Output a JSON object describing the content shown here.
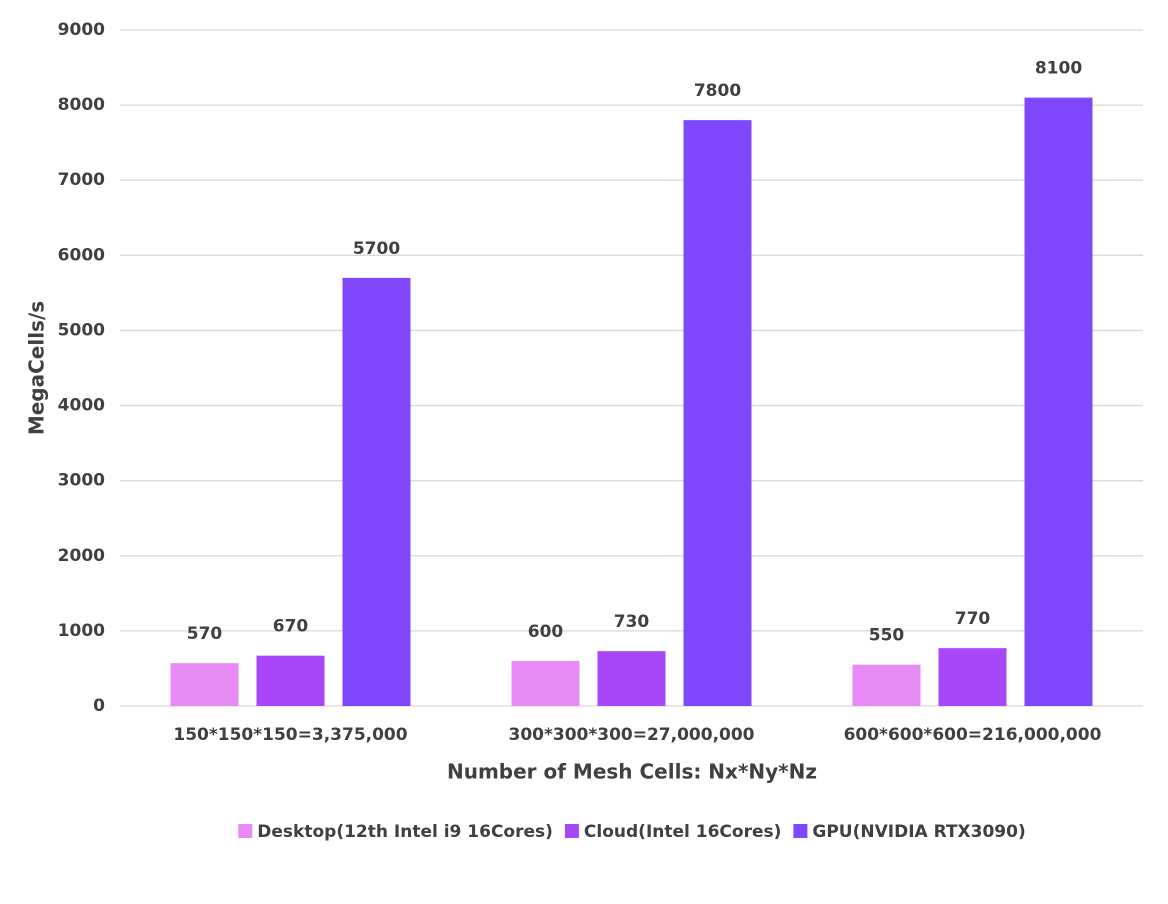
{
  "chart_data": {
    "type": "bar",
    "x_label": "Number of Mesh Cells: Nx*Ny*Nz",
    "y_label": "MegaCells/s",
    "categories": [
      "150*150*150=3,375,000",
      "300*300*300=27,000,000",
      "600*600*600=216,000,000"
    ],
    "series": [
      {
        "name": "Desktop(12th Intel i9 16Cores)",
        "color": "#e88bf7",
        "values": [
          570,
          600,
          550
        ]
      },
      {
        "name": "Cloud(Intel 16Cores)",
        "color": "#a847fa",
        "values": [
          670,
          730,
          770
        ]
      },
      {
        "name": "GPU(NVIDIA RTX3090)",
        "color": "#7f47fe",
        "values": [
          5700,
          7800,
          8100
        ]
      }
    ],
    "ylim": [
      0,
      9000
    ],
    "yticks": [
      0,
      1000,
      2000,
      3000,
      4000,
      5000,
      6000,
      7000,
      8000,
      9000
    ],
    "grid": true,
    "legend": "bottom"
  }
}
